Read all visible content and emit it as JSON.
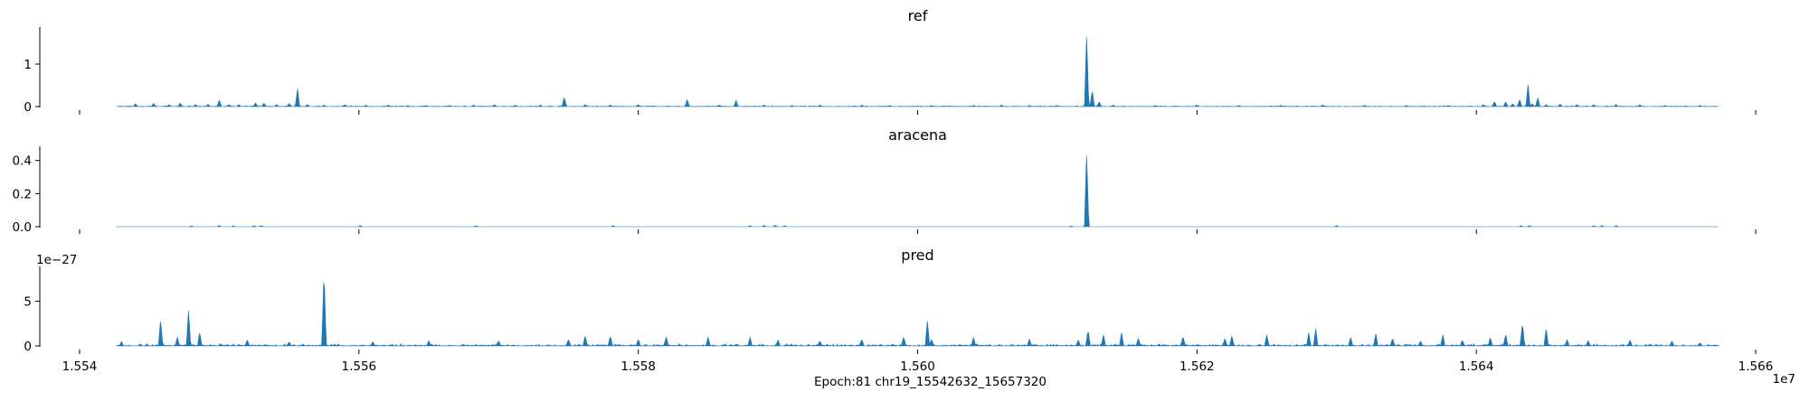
{
  "colors": {
    "fill": "#1f77b4",
    "axis": "#000000",
    "background": "#ffffff"
  },
  "chart_data": [
    {
      "type": "area",
      "title": "ref",
      "ylim": [
        0,
        1.85
      ],
      "yticks": [
        0,
        1
      ],
      "ytick_labels": [
        "0",
        "1"
      ],
      "y_offset_label": "",
      "x_range": [
        15542632,
        15657320
      ],
      "peaks": [
        [
          15544000,
          0.07
        ],
        [
          15545300,
          0.08
        ],
        [
          15546400,
          0.05
        ],
        [
          15547200,
          0.09
        ],
        [
          15548300,
          0.05
        ],
        [
          15549200,
          0.06
        ],
        [
          15550000,
          0.16
        ],
        [
          15550700,
          0.05
        ],
        [
          15551400,
          0.05
        ],
        [
          15552600,
          0.09
        ],
        [
          15553200,
          0.09
        ],
        [
          15554100,
          0.05
        ],
        [
          15555000,
          0.08
        ],
        [
          15555600,
          0.44
        ],
        [
          15556300,
          0.05
        ],
        [
          15557500,
          0.04
        ],
        [
          15559000,
          0.05
        ],
        [
          15560500,
          0.04
        ],
        [
          15562100,
          0.04
        ],
        [
          15563500,
          0.03
        ],
        [
          15564800,
          0.03
        ],
        [
          15566500,
          0.03
        ],
        [
          15568200,
          0.04
        ],
        [
          15569700,
          0.05
        ],
        [
          15571200,
          0.04
        ],
        [
          15573000,
          0.04
        ],
        [
          15574700,
          0.24
        ],
        [
          15576200,
          0.05
        ],
        [
          15578000,
          0.04
        ],
        [
          15580000,
          0.05
        ],
        [
          15583500,
          0.17
        ],
        [
          15585800,
          0.04
        ],
        [
          15587000,
          0.15
        ],
        [
          15589000,
          0.04
        ],
        [
          15591000,
          0.03
        ],
        [
          15593000,
          0.04
        ],
        [
          15596000,
          0.04
        ],
        [
          15598000,
          0.03
        ],
        [
          15601000,
          0.03
        ],
        [
          15604000,
          0.03
        ],
        [
          15606000,
          0.04
        ],
        [
          15608000,
          0.03
        ],
        [
          15610000,
          0.03
        ],
        [
          15612100,
          1.75
        ],
        [
          15612500,
          0.4
        ],
        [
          15613000,
          0.12
        ],
        [
          15614000,
          0.04
        ],
        [
          15617000,
          0.03
        ],
        [
          15620000,
          0.04
        ],
        [
          15623000,
          0.03
        ],
        [
          15626000,
          0.03
        ],
        [
          15629000,
          0.04
        ],
        [
          15632000,
          0.03
        ],
        [
          15635000,
          0.03
        ],
        [
          15638000,
          0.03
        ],
        [
          15640500,
          0.05
        ],
        [
          15641300,
          0.13
        ],
        [
          15642100,
          0.12
        ],
        [
          15642600,
          0.07
        ],
        [
          15643100,
          0.18
        ],
        [
          15644000,
          0.07
        ],
        [
          15645000,
          0.05
        ],
        [
          15646000,
          0.06
        ],
        [
          15647200,
          0.05
        ],
        [
          15648400,
          0.05
        ],
        [
          15650000,
          0.05
        ],
        [
          15651700,
          0.05
        ],
        [
          15653500,
          0.03
        ],
        [
          15655000,
          0.02
        ],
        [
          15656000,
          0.03
        ],
        [
          15643700,
          0.52
        ],
        [
          15644400,
          0.22
        ]
      ],
      "noise": 0.02
    },
    {
      "type": "area",
      "title": "aracena",
      "ylim": [
        0,
        0.48
      ],
      "yticks": [
        0,
        0.2,
        0.4
      ],
      "ytick_labels": [
        "0.0",
        "0.2",
        "0.4"
      ],
      "y_offset_label": "",
      "x_range": [
        15542632,
        15657320
      ],
      "peaks": [
        [
          15548000,
          0.005
        ],
        [
          15550000,
          0.008
        ],
        [
          15551000,
          0.006
        ],
        [
          15552500,
          0.007
        ],
        [
          15553000,
          0.007
        ],
        [
          15560100,
          0.007
        ],
        [
          15568400,
          0.006
        ],
        [
          15578200,
          0.006
        ],
        [
          15588000,
          0.006
        ],
        [
          15589000,
          0.008
        ],
        [
          15589800,
          0.009
        ],
        [
          15590500,
          0.006
        ],
        [
          15611000,
          0.004
        ],
        [
          15612100,
          0.46
        ],
        [
          15630000,
          0.007
        ],
        [
          15643200,
          0.006
        ],
        [
          15643800,
          0.007
        ],
        [
          15648400,
          0.006
        ],
        [
          15649000,
          0.007
        ],
        [
          15650000,
          0.006
        ]
      ],
      "noise": 0
    },
    {
      "type": "area",
      "title": "pred",
      "ylim": [
        0,
        8.8
      ],
      "yticks": [
        0,
        5
      ],
      "ytick_labels": [
        "0",
        "5"
      ],
      "y_offset_label": "1e−27",
      "x_range": [
        15542632,
        15657320
      ],
      "xlabel": "Epoch:81 chr19_15542632_15657320",
      "xticks": [
        15540000,
        15560000,
        15580000,
        15600000,
        15620000,
        15640000,
        15660000
      ],
      "xtick_labels": [
        "1.554",
        "1.556",
        "1.558",
        "1.560",
        "1.562",
        "1.564",
        "1.566"
      ],
      "x_offset_label": "1e7",
      "peaks": [
        [
          15543000,
          0.5
        ],
        [
          15545800,
          3.0
        ],
        [
          15547000,
          1.0
        ],
        [
          15547800,
          4.1
        ],
        [
          15548600,
          1.6
        ],
        [
          15552000,
          0.7
        ],
        [
          15555000,
          0.5
        ],
        [
          15557500,
          8.8
        ],
        [
          15561000,
          0.5
        ],
        [
          15565000,
          0.6
        ],
        [
          15570000,
          0.6
        ],
        [
          15575000,
          0.8
        ],
        [
          15576200,
          1.2
        ],
        [
          15578000,
          1.2
        ],
        [
          15580000,
          0.8
        ],
        [
          15582000,
          1.1
        ],
        [
          15585000,
          1.0
        ],
        [
          15588000,
          1.0
        ],
        [
          15590000,
          0.7
        ],
        [
          15593000,
          0.6
        ],
        [
          15596000,
          0.8
        ],
        [
          15599000,
          1.1
        ],
        [
          15601000,
          0.8
        ],
        [
          15604000,
          1.0
        ],
        [
          15608000,
          0.8
        ],
        [
          15611500,
          0.7
        ],
        [
          15612200,
          1.9
        ],
        [
          15613300,
          1.3
        ],
        [
          15614600,
          1.5
        ],
        [
          15615800,
          0.9
        ],
        [
          15619000,
          1.1
        ],
        [
          15622000,
          0.9
        ],
        [
          15625000,
          1.3
        ],
        [
          15628000,
          1.5
        ],
        [
          15631000,
          1.0
        ],
        [
          15634000,
          0.9
        ],
        [
          15636000,
          0.6
        ],
        [
          15639000,
          0.7
        ],
        [
          15641000,
          1.0
        ],
        [
          15643300,
          2.7
        ],
        [
          15645000,
          2.0
        ],
        [
          15646500,
          0.7
        ],
        [
          15648000,
          0.6
        ],
        [
          15651000,
          0.7
        ],
        [
          15654000,
          0.6
        ],
        [
          15656000,
          0.4
        ],
        [
          15600700,
          2.9
        ],
        [
          15628500,
          2.0
        ],
        [
          15622500,
          1.2
        ],
        [
          15632800,
          1.4
        ],
        [
          15637600,
          1.3
        ],
        [
          15642100,
          1.4
        ]
      ],
      "noise": 0.25
    }
  ]
}
